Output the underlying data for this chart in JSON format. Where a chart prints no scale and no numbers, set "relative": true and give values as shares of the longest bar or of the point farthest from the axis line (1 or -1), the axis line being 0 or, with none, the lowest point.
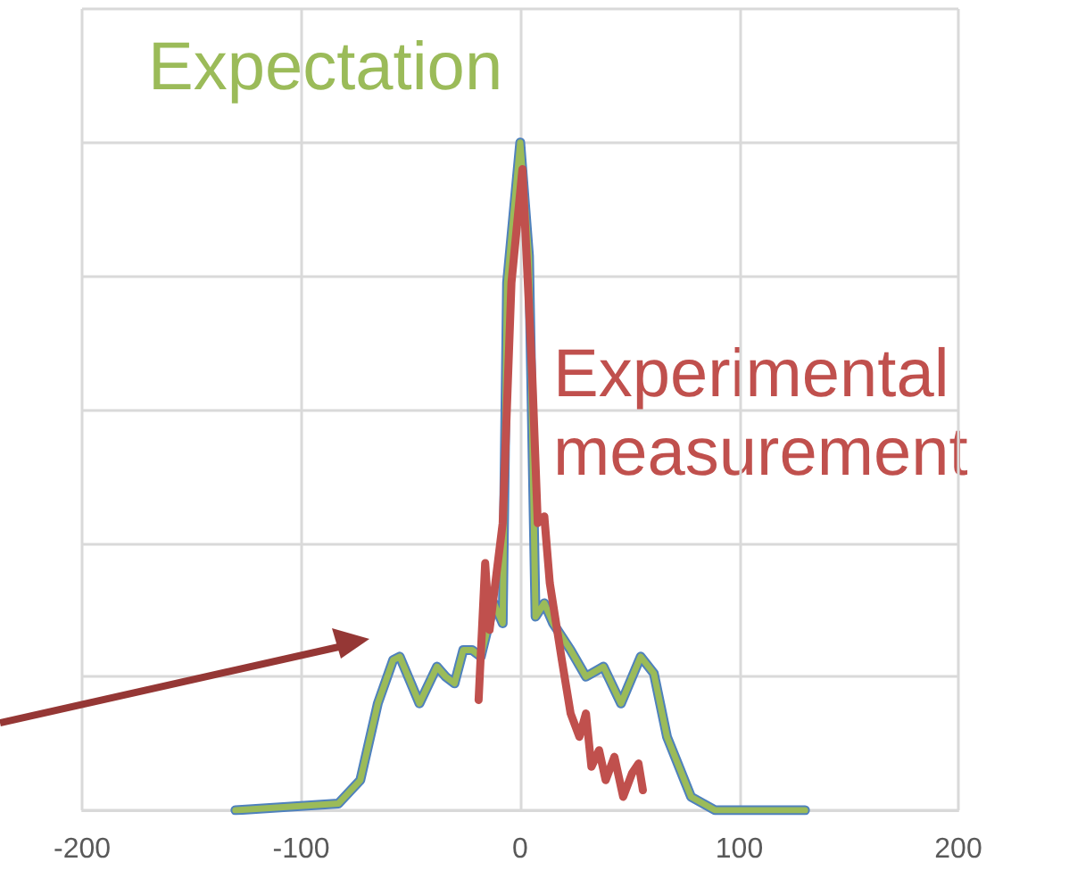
{
  "chart_data": {
    "type": "line",
    "relative": true,
    "grid": true,
    "legend": false,
    "marker": "none",
    "line_style": "solid",
    "xlim": [
      -200,
      200
    ],
    "xticks": [
      -200,
      -100,
      0,
      100,
      200
    ],
    "series": [
      {
        "color": "#4f81bd",
        "x": [
          -130,
          -83,
          -73,
          -65,
          -58,
          -55,
          -46,
          -38,
          -34,
          -30,
          -26,
          -22,
          -18,
          -12,
          -8,
          -6,
          0,
          4,
          7,
          11,
          15,
          23,
          30,
          38,
          46,
          55,
          61,
          67,
          78,
          89,
          130
        ],
        "values": [
          0,
          0.01,
          0.045,
          0.16,
          0.225,
          0.23,
          0.16,
          0.215,
          0.2,
          0.19,
          0.24,
          0.24,
          0.23,
          0.31,
          0.28,
          0.79,
          1,
          0.83,
          0.29,
          0.31,
          0.28,
          0.24,
          0.2,
          0.215,
          0.16,
          0.23,
          0.205,
          0.11,
          0.02,
          0,
          0
        ]
      },
      {
        "name": "Expectation",
        "color": "#9bbb59",
        "x": [
          -130,
          -83,
          -73,
          -65,
          -58,
          -55,
          -46,
          -38,
          -34,
          -30,
          -26,
          -22,
          -18,
          -12,
          -8,
          -6,
          0,
          4,
          7,
          11,
          15,
          23,
          30,
          38,
          46,
          55,
          61,
          67,
          78,
          89,
          130
        ],
        "values": [
          0,
          0.01,
          0.045,
          0.16,
          0.225,
          0.23,
          0.16,
          0.215,
          0.2,
          0.19,
          0.24,
          0.24,
          0.23,
          0.31,
          0.28,
          0.79,
          1,
          0.83,
          0.29,
          0.31,
          0.28,
          0.24,
          0.2,
          0.215,
          0.16,
          0.23,
          0.205,
          0.11,
          0.02,
          0,
          0
        ]
      },
      {
        "name": "Experimental measurement",
        "color": "#c0504d",
        "x": [
          -19,
          -16,
          -14,
          -8,
          -4,
          1,
          5.5,
          8,
          11,
          13.5,
          19,
          23,
          27,
          30,
          32.5,
          36,
          39,
          43,
          47,
          51,
          54,
          56
        ],
        "values": [
          0.165,
          0.37,
          0.27,
          0.43,
          0.79,
          0.96,
          0.65,
          0.43,
          0.44,
          0.34,
          0.225,
          0.145,
          0.11,
          0.145,
          0.065,
          0.09,
          0.045,
          0.08,
          0.02,
          0.055,
          0.07,
          0.03
        ]
      }
    ]
  }
}
